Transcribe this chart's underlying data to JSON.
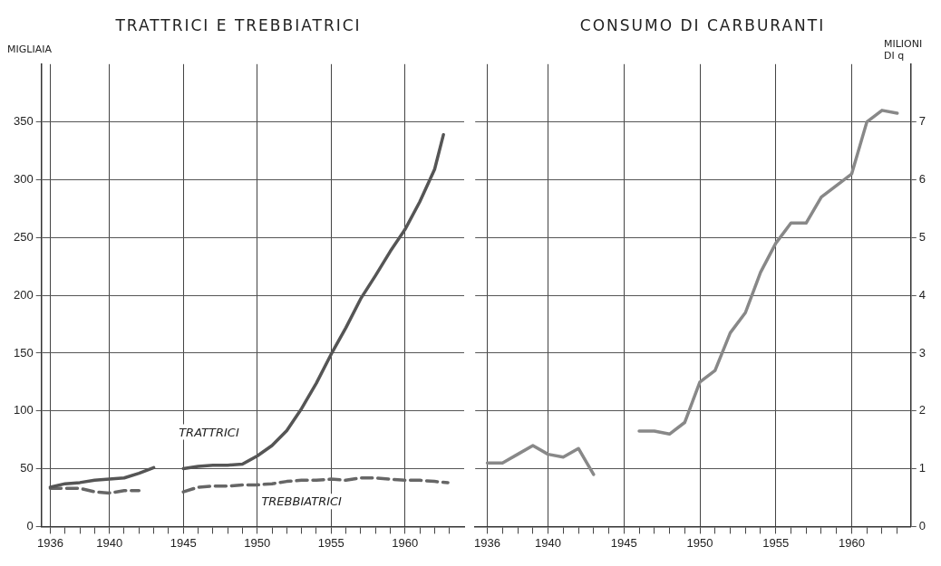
{
  "chart_data": [
    {
      "type": "line",
      "title": "TRATTRICI E TREBBIATRICI",
      "ylabel": "MIGLIAIA",
      "xlim": [
        1935.4,
        1964
      ],
      "ylim": [
        0,
        400
      ],
      "xticks": [
        1936,
        {
          "value": 1937,
          "label": null
        },
        {
          "value": 1938,
          "label": null
        },
        {
          "value": 1939,
          "label": null
        },
        1940,
        {
          "value": 1941,
          "label": null
        },
        {
          "value": 1942,
          "label": null
        },
        {
          "value": 1943,
          "label": null
        },
        {
          "value": 1944,
          "label": null
        },
        1945,
        {
          "value": 1946,
          "label": null
        },
        {
          "value": 1947,
          "label": null
        },
        {
          "value": 1948,
          "label": null
        },
        {
          "value": 1949,
          "label": null
        },
        1950,
        {
          "value": 1951,
          "label": null
        },
        {
          "value": 1952,
          "label": null
        },
        {
          "value": 1953,
          "label": null
        },
        {
          "value": 1954,
          "label": null
        },
        1955,
        {
          "value": 1956,
          "label": null
        },
        {
          "value": 1957,
          "label": null
        },
        {
          "value": 1958,
          "label": null
        },
        {
          "value": 1959,
          "label": null
        },
        1960,
        {
          "value": 1961,
          "label": null
        },
        {
          "value": 1962,
          "label": null
        },
        {
          "value": 1963,
          "label": null
        }
      ],
      "yticks": [
        0,
        50,
        100,
        150,
        200,
        250,
        300,
        350
      ],
      "grid": true,
      "legend": false,
      "marker": "none",
      "series": [
        {
          "name": "TRATTRICI",
          "color": "#555555",
          "line_style": "solid",
          "x": [
            1936,
            1937,
            1938,
            1939,
            1940,
            1941,
            1942,
            1943,
            1944,
            1945,
            1946,
            1947,
            1948,
            1949,
            1950,
            1951,
            1952,
            1953,
            1954,
            1955,
            1956,
            1957,
            1958,
            1959,
            1960,
            1961,
            1962,
            1962.6
          ],
          "values": [
            34,
            37,
            38,
            40,
            41,
            42,
            46,
            51,
            null,
            50,
            52,
            53,
            53,
            54,
            61,
            70,
            83,
            102,
            124,
            149,
            172,
            197,
            217,
            238,
            257,
            281,
            309,
            339
          ]
        },
        {
          "name": "TREBBIATRICI",
          "color": "#666666",
          "line_style": "dashed",
          "x": [
            1936,
            1937,
            1938,
            1939,
            1940,
            1941,
            1942,
            1943,
            1945,
            1946,
            1947,
            1948,
            1949,
            1950,
            1951,
            1952,
            1953,
            1954,
            1955,
            1956,
            1957,
            1958,
            1959,
            1960,
            1961,
            1962,
            1962.9
          ],
          "values": [
            33,
            33,
            33,
            30,
            29,
            31,
            31,
            null,
            30,
            34,
            35,
            35,
            36,
            36,
            37,
            39,
            40,
            40,
            41,
            40,
            42,
            42,
            41,
            40,
            40,
            39,
            38
          ]
        }
      ]
    },
    {
      "type": "line",
      "title": "CONSUMO DI CARBURANTI",
      "y2label": "MILIONI DI q",
      "xlim": [
        1935.2,
        1963.9
      ],
      "y2lim": [
        0,
        8
      ],
      "xticks": [
        1936,
        {
          "value": 1937,
          "label": null
        },
        {
          "value": 1938,
          "label": null
        },
        {
          "value": 1939,
          "label": null
        },
        1940,
        {
          "value": 1941,
          "label": null
        },
        {
          "value": 1942,
          "label": null
        },
        {
          "value": 1943,
          "label": null
        },
        {
          "value": 1944,
          "label": null
        },
        1945,
        {
          "value": 1946,
          "label": null
        },
        {
          "value": 1947,
          "label": null
        },
        {
          "value": 1948,
          "label": null
        },
        {
          "value": 1949,
          "label": null
        },
        1950,
        {
          "value": 1951,
          "label": null
        },
        {
          "value": 1952,
          "label": null
        },
        {
          "value": 1953,
          "label": null
        },
        {
          "value": 1954,
          "label": null
        },
        1955,
        {
          "value": 1956,
          "label": null
        },
        {
          "value": 1957,
          "label": null
        },
        {
          "value": 1958,
          "label": null
        },
        {
          "value": 1959,
          "label": null
        },
        1960,
        {
          "value": 1961,
          "label": null
        },
        {
          "value": 1962,
          "label": null
        },
        {
          "value": 1963,
          "label": null
        }
      ],
      "y2ticks": [
        0,
        1,
        2,
        3,
        4,
        5,
        6,
        7
      ],
      "grid": true,
      "legend": false,
      "marker": "none",
      "series": [
        {
          "color": "#888888",
          "axis": "y2",
          "line_style": "solid",
          "x": [
            1936,
            1937,
            1938,
            1939,
            1940,
            1941,
            1942,
            1943,
            1944,
            1946,
            1947,
            1948,
            1949,
            1950,
            1951,
            1952,
            1953,
            1954,
            1955,
            1956,
            1957,
            1958,
            1959,
            1960,
            1961,
            1962,
            1963
          ],
          "values": [
            1.1,
            1.1,
            1.25,
            1.4,
            1.25,
            1.2,
            1.35,
            0.9,
            null,
            1.65,
            1.65,
            1.6,
            1.8,
            2.5,
            2.7,
            3.35,
            3.7,
            4.4,
            4.9,
            5.25,
            5.25,
            5.7,
            5.9,
            6.1,
            7.0,
            7.2,
            7.15
          ]
        }
      ]
    }
  ]
}
